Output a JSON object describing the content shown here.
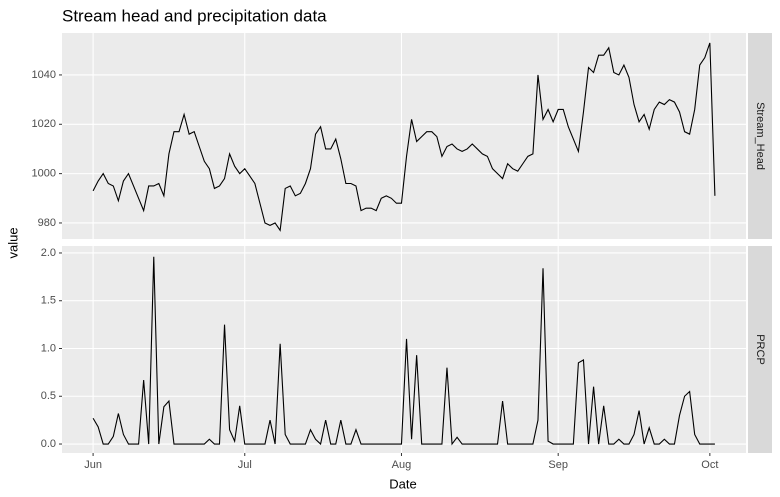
{
  "chart_data": {
    "type": "line",
    "title": "Stream head and precipitation data",
    "xlabel": "Date",
    "ylabel": "value",
    "color": "#000000",
    "grid": true,
    "categories": [
      "Jun",
      null,
      null,
      null,
      null,
      null,
      null,
      null,
      null,
      null,
      null,
      null,
      null,
      null,
      null,
      null,
      null,
      null,
      null,
      null,
      null,
      null,
      null,
      null,
      null,
      null,
      null,
      null,
      null,
      null,
      "Jul",
      null,
      null,
      null,
      null,
      null,
      null,
      null,
      null,
      null,
      null,
      null,
      null,
      null,
      null,
      null,
      null,
      null,
      null,
      null,
      null,
      null,
      null,
      null,
      null,
      null,
      null,
      null,
      null,
      null,
      null,
      "Aug",
      null,
      null,
      null,
      null,
      null,
      null,
      null,
      null,
      null,
      null,
      null,
      null,
      null,
      null,
      null,
      null,
      null,
      null,
      null,
      null,
      null,
      null,
      null,
      null,
      null,
      null,
      null,
      null,
      null,
      null,
      "Sep",
      null,
      null,
      null,
      null,
      null,
      null,
      null,
      null,
      null,
      null,
      null,
      null,
      null,
      null,
      null,
      null,
      null,
      null,
      null,
      null,
      null,
      null,
      null,
      null,
      null,
      null,
      null,
      null,
      null,
      "Oct",
      null
    ],
    "panels": [
      {
        "name": "Stream_Head",
        "ylim": [
          973.5,
          1057
        ],
        "yticks": [
          980,
          1000,
          1020,
          1040
        ],
        "values": [
          993,
          997,
          1000,
          996,
          995,
          989,
          997,
          1000,
          995,
          990,
          985,
          995,
          995,
          996,
          991,
          1008,
          1017,
          1017,
          1024,
          1016,
          1017,
          1011,
          1005,
          1002,
          994,
          995,
          998,
          1008,
          1003,
          1000,
          1002,
          999,
          996,
          988,
          980,
          979,
          980,
          977,
          994,
          995,
          991,
          992,
          996,
          1002,
          1016,
          1019,
          1010,
          1010,
          1014,
          1006,
          996,
          996,
          995,
          985,
          986,
          986,
          985,
          990,
          991,
          990,
          988,
          988,
          1007,
          1022,
          1013,
          1015,
          1017,
          1017,
          1015,
          1007,
          1011,
          1012,
          1010,
          1009,
          1010,
          1012,
          1010,
          1008,
          1007,
          1002,
          1000,
          998,
          1004,
          1002,
          1001,
          1004,
          1007,
          1008,
          1040,
          1022,
          1026,
          1021,
          1026,
          1026,
          1019,
          1014,
          1009,
          1025,
          1043,
          1041,
          1048,
          1048,
          1051,
          1041,
          1040,
          1044,
          1039,
          1028,
          1021,
          1024,
          1018,
          1026,
          1029,
          1028,
          1030,
          1029,
          1025,
          1017,
          1016,
          1026,
          1044,
          1047,
          1053,
          991
        ]
      },
      {
        "name": "PRCP",
        "ylim": [
          -0.094,
          2.073
        ],
        "yticks": [
          {
            "value": 0,
            "label": "0.0"
          },
          0.5,
          {
            "value": 1,
            "label": "1.0"
          },
          1.5,
          {
            "value": 2,
            "label": "2.0"
          }
        ],
        "values": [
          0.27,
          0.18,
          0,
          0,
          0.08,
          0.32,
          0.1,
          0,
          0,
          0,
          0.67,
          0,
          1.96,
          0,
          0.39,
          0.45,
          0,
          0,
          0,
          0,
          0,
          0,
          0,
          0.05,
          0,
          0,
          1.25,
          0.15,
          0.03,
          0.4,
          0,
          0,
          0,
          0,
          0,
          0.25,
          0,
          1.05,
          0.1,
          0,
          0,
          0,
          0,
          0.15,
          0.05,
          0,
          0.25,
          0,
          0,
          0.25,
          0,
          0,
          0.15,
          0,
          0,
          0,
          0,
          0,
          0,
          0,
          0,
          0,
          1.1,
          0.05,
          0.93,
          0,
          0,
          0,
          0,
          0,
          0.8,
          0,
          0.07,
          0,
          0,
          0,
          0,
          0,
          0,
          0,
          0,
          0.45,
          0,
          0,
          0,
          0,
          0,
          0,
          0.25,
          1.84,
          0.03,
          0,
          0,
          0,
          0,
          0,
          0.85,
          0.88,
          0,
          0.6,
          0,
          0.4,
          0,
          0,
          0.05,
          0,
          0,
          0.1,
          0.35,
          0,
          0.17,
          0,
          0,
          0.05,
          0,
          0,
          0.3,
          0.5,
          0.55,
          0.1,
          0,
          0,
          0,
          0
        ]
      }
    ]
  }
}
